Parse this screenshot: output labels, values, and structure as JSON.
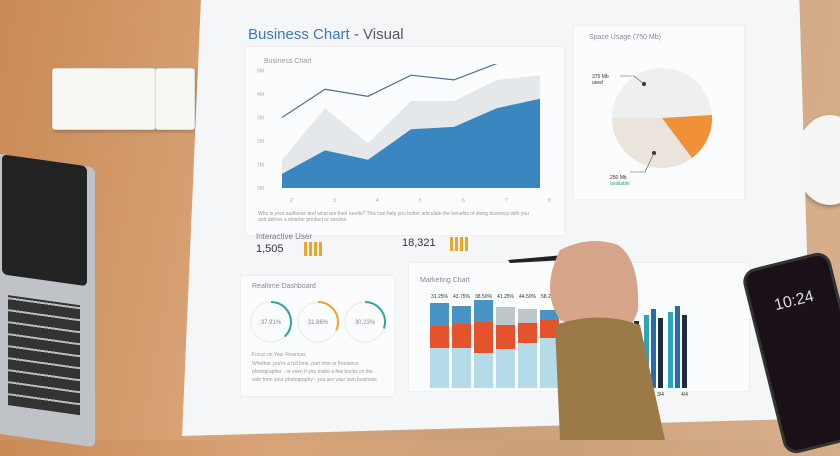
{
  "page_title": {
    "main": "Business Chart",
    "sub": "- Visual"
  },
  "business_chart": {
    "title": "Business Chart",
    "y_ticks": [
      "5M",
      "4M",
      "3M",
      "2M",
      "1M",
      "0M"
    ],
    "x_ticks": [
      "2",
      "3",
      "4",
      "5",
      "6",
      "7",
      "8"
    ],
    "line": [
      3.0,
      4.2,
      3.9,
      4.8,
      4.6,
      5.3,
      5.4
    ],
    "gray_area": [
      1.2,
      3.4,
      1.9,
      3.7,
      3.7,
      4.6,
      4.8
    ],
    "blue_area": [
      0.6,
      1.6,
      1.2,
      2.5,
      2.6,
      3.4,
      3.8
    ],
    "description": "Who is your audience and what are their needs? This can help you better articulate the benefits of doing business with you and deliver a smarter product or service.",
    "colors": {
      "blue": "#3a86c0",
      "line": "#4f6f8f",
      "gray": "#e5e8ea"
    }
  },
  "interactive_user": {
    "label": "Interactive User",
    "value1": "1,505",
    "value2": "18,321",
    "accent": "#f0a32a"
  },
  "space_usage": {
    "title": "Space Usage (750 Mb)",
    "used_label": "375 Mb",
    "used_sub": "used",
    "avail_label": "250 Mb",
    "avail_sub": "available",
    "orange": "#f0913a"
  },
  "realtime": {
    "title": "Realtime Dashboard",
    "gauges": [
      {
        "value": "37.91%",
        "pct": 37.91,
        "color": "#2aa6a6"
      },
      {
        "value": "31.86%",
        "pct": 31.86,
        "color": "#f0a32a"
      },
      {
        "value": "30.23%",
        "pct": 30.23,
        "color": "#2aa6a6"
      }
    ],
    "heading": "Focus on Your Finances",
    "text": "Whether you're a full time, part time or freelance photographer - or even if you make a few bucks on the side from your photography - you are your own business."
  },
  "marketing": {
    "title": "Marketing Chart",
    "labels": [
      "31.25%",
      "43.75%",
      "38.50%",
      "41.25%",
      "44.50%",
      "58.2"
    ],
    "x_ticks": [
      "3/4",
      "4/4"
    ]
  },
  "phone": {
    "time": "10:24"
  }
}
